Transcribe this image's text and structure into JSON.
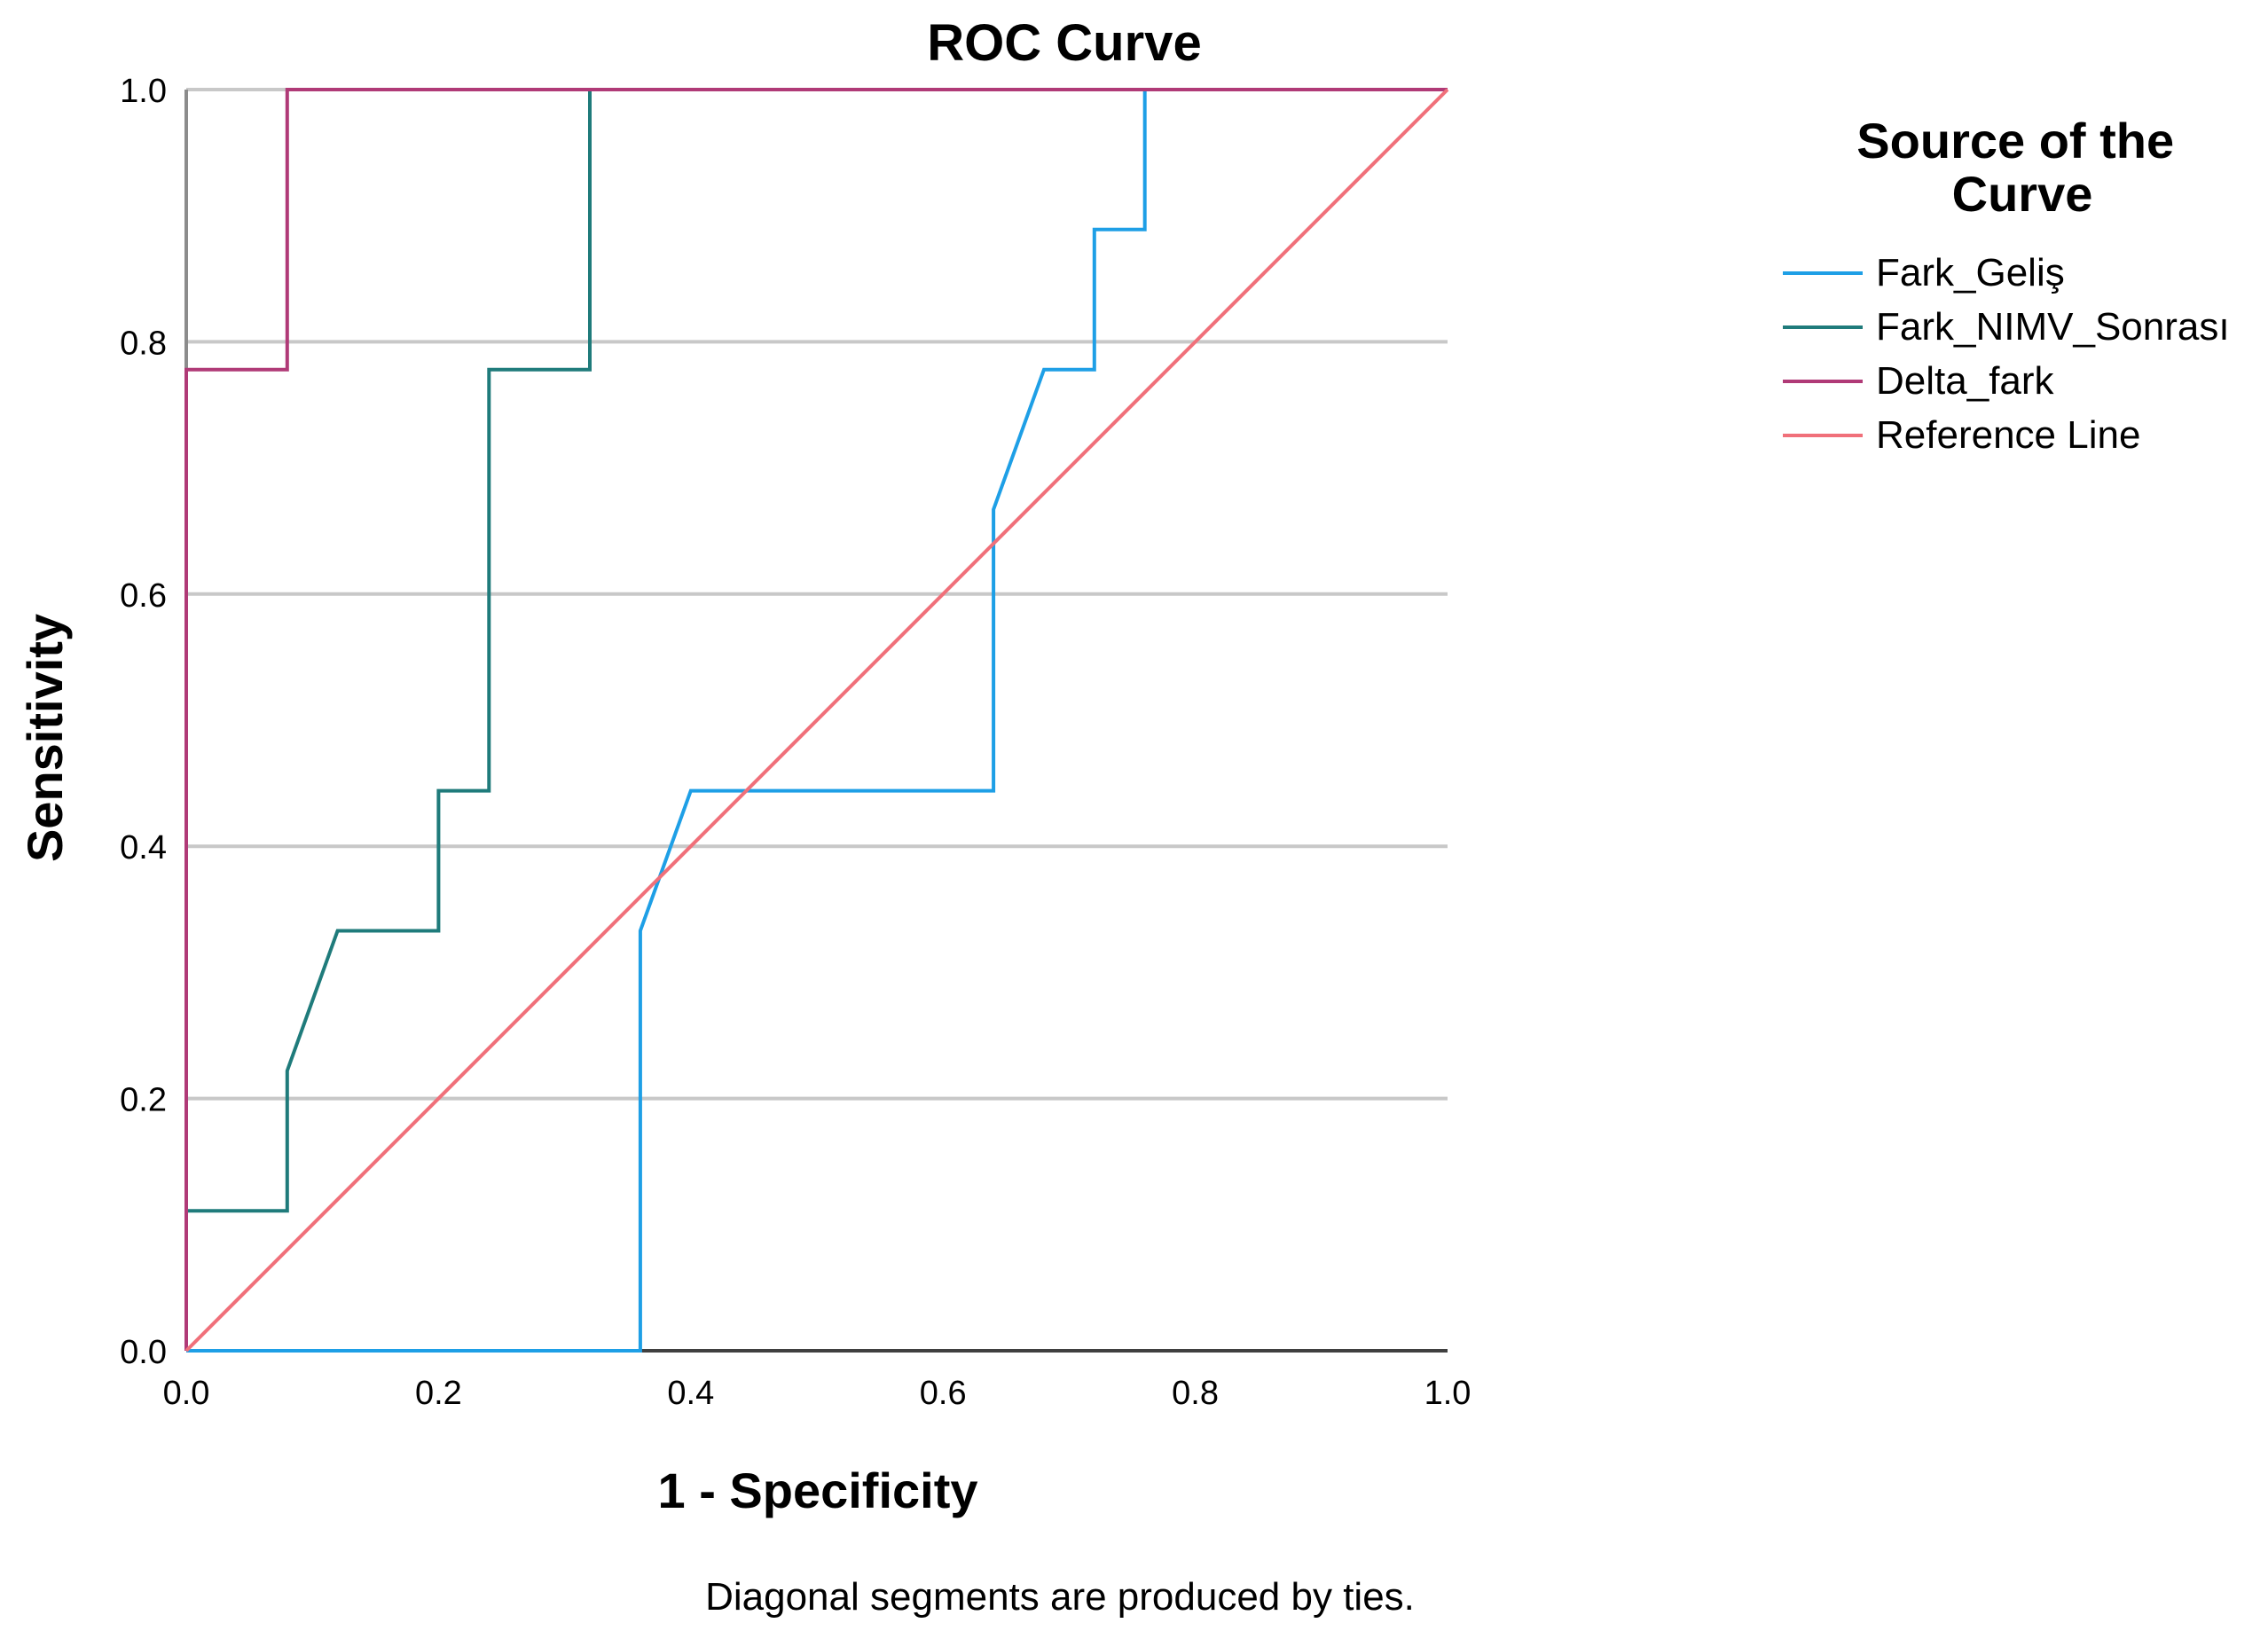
{
  "chart_data": {
    "type": "line",
    "title": "ROC Curve",
    "xlabel": "1 - Specificity",
    "ylabel": "Sensitivity",
    "xlim": [
      0,
      1
    ],
    "ylim": [
      0,
      1
    ],
    "x_ticks": [
      "0.0",
      "0.2",
      "0.4",
      "0.6",
      "0.8",
      "1.0"
    ],
    "y_ticks": [
      "0.0",
      "0.2",
      "0.4",
      "0.6",
      "0.8",
      "1.0"
    ],
    "grid": "horizontal",
    "legend_title": "Source of the Curve",
    "legend_placement": "right",
    "footnote": "Diagonal segments are produced by ties.",
    "series": [
      {
        "name": "Fark_Geliş",
        "color": "#1E9FE6",
        "x": [
          0.0,
          0.36,
          0.36,
          0.4,
          0.64,
          0.64,
          0.68,
          0.72,
          0.72,
          0.76,
          0.76,
          1.0
        ],
        "y": [
          0.0,
          0.0,
          0.333,
          0.444,
          0.444,
          0.667,
          0.778,
          0.778,
          0.889,
          0.889,
          1.0,
          1.0
        ]
      },
      {
        "name": "Fark_NIMV_Sonrası",
        "color": "#1F7B7B",
        "x": [
          0.0,
          0.0,
          0.08,
          0.08,
          0.12,
          0.2,
          0.2,
          0.24,
          0.24,
          0.32,
          0.32,
          1.0
        ],
        "y": [
          0.0,
          0.111,
          0.111,
          0.222,
          0.333,
          0.333,
          0.444,
          0.444,
          0.778,
          0.778,
          1.0,
          1.0
        ]
      },
      {
        "name": "Delta_fark",
        "color": "#B03A77",
        "x": [
          0.0,
          0.0,
          0.08,
          0.08,
          1.0
        ],
        "y": [
          0.0,
          0.778,
          0.778,
          1.0,
          1.0
        ]
      },
      {
        "name": "Reference Line",
        "color": "#F0707A",
        "x": [
          0.0,
          1.0
        ],
        "y": [
          0.0,
          1.0
        ]
      }
    ]
  }
}
